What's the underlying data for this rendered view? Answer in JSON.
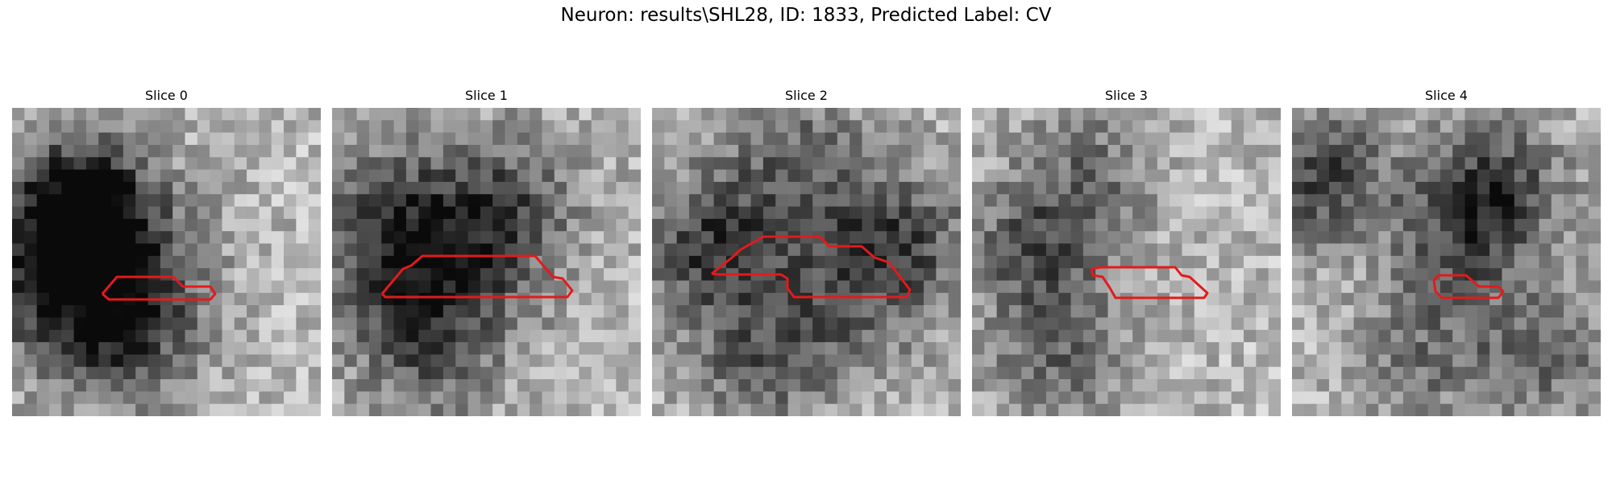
{
  "figure": {
    "title": "Neuron: results\\SHL28, ID: 1833, Predicted Label: CV"
  },
  "panels": [
    {
      "title": "Slice 0"
    },
    {
      "title": "Slice 1"
    },
    {
      "title": "Slice 2"
    },
    {
      "title": "Slice 3"
    },
    {
      "title": "Slice 4"
    }
  ],
  "colors": {
    "contour": "#e41a1c",
    "background": "#ffffff"
  }
}
